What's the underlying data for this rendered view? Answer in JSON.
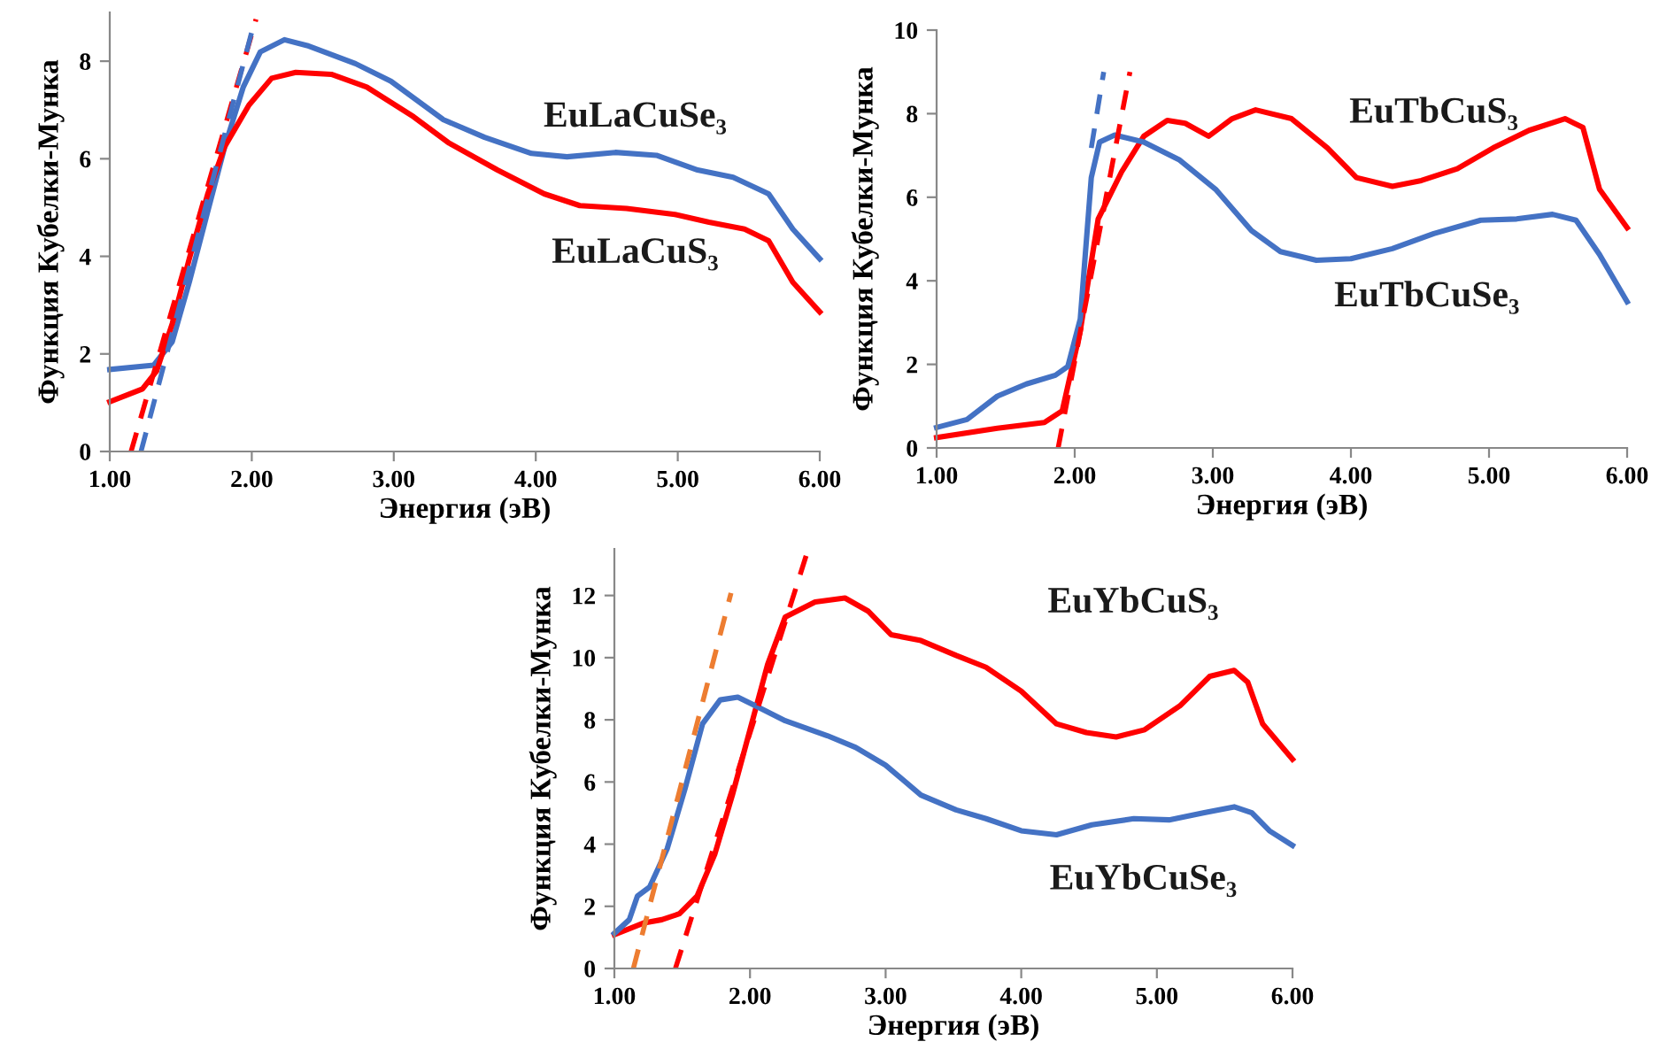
{
  "chart_data": [
    {
      "type": "line",
      "xlabel": "Энергия (эВ)",
      "ylabel": "Функция Кубелки-Мунка",
      "xlim": [
        1,
        6
      ],
      "ylim": [
        0,
        9
      ],
      "xticks": [
        {
          "value": 1,
          "label": "1.00"
        },
        {
          "value": 2,
          "label": "2.00"
        },
        {
          "value": 3,
          "label": "3.00"
        },
        {
          "value": 4,
          "label": "4.00"
        },
        {
          "value": 5,
          "label": "5.00"
        },
        {
          "value": 6,
          "label": "6.00"
        }
      ],
      "yticks": [
        0,
        2,
        4,
        6,
        8
      ],
      "grid": false,
      "legend": false,
      "series": [
        {
          "name": "EuLaCuSe₃",
          "color": "#4472c4",
          "line_style": "solid",
          "x": [
            1.0,
            1.31,
            1.44,
            1.56,
            1.69,
            1.81,
            1.94,
            2.06,
            2.23,
            2.39,
            2.73,
            2.98,
            3.35,
            3.64,
            3.97,
            4.22,
            4.56,
            4.85,
            5.14,
            5.39,
            5.64,
            5.81,
            6.0
          ],
          "values": [
            1.68,
            1.77,
            2.25,
            3.47,
            4.92,
            6.25,
            7.47,
            8.19,
            8.44,
            8.32,
            7.95,
            7.59,
            6.8,
            6.44,
            6.11,
            6.04,
            6.13,
            6.07,
            5.77,
            5.62,
            5.28,
            4.56,
            3.95
          ]
        },
        {
          "name": "EuLaCuS₃",
          "color": "#ff0000",
          "line_style": "solid",
          "x": [
            1.0,
            1.23,
            1.33,
            1.44,
            1.56,
            1.69,
            1.81,
            1.98,
            2.14,
            2.31,
            2.56,
            2.81,
            3.14,
            3.39,
            3.73,
            4.06,
            4.31,
            4.64,
            4.98,
            5.22,
            5.47,
            5.64,
            5.81,
            6.0
          ],
          "values": [
            1.02,
            1.28,
            1.65,
            2.62,
            3.95,
            5.28,
            6.25,
            7.1,
            7.65,
            7.77,
            7.73,
            7.47,
            6.86,
            6.32,
            5.77,
            5.28,
            5.04,
            4.98,
            4.86,
            4.7,
            4.56,
            4.32,
            3.47,
            2.86
          ]
        },
        {
          "color": "#ff0000",
          "line_style": "dashed",
          "x": [
            1.15,
            2.03
          ],
          "values": [
            0,
            8.86
          ]
        },
        {
          "color": "#4472c4",
          "line_style": "dashed",
          "x": [
            1.22,
            2.0
          ],
          "values": [
            0,
            8.6
          ]
        }
      ]
    },
    {
      "type": "line",
      "xlabel": "Энергия (эВ)",
      "ylabel": "Функция Кубелки-Мунка",
      "xlim": [
        1,
        6
      ],
      "ylim": [
        0,
        10
      ],
      "xticks": [
        {
          "value": 1,
          "label": "1.00"
        },
        {
          "value": 2,
          "label": "2.00"
        },
        {
          "value": 3,
          "label": "3.00"
        },
        {
          "value": 4,
          "label": "4.00"
        },
        {
          "value": 5,
          "label": "5.00"
        },
        {
          "value": 6,
          "label": "6.00"
        }
      ],
      "yticks": [
        0,
        2,
        4,
        6,
        8,
        10
      ],
      "grid": false,
      "legend": false,
      "series": [
        {
          "name": "EuTbCuS₃",
          "color": "#ff0000",
          "line_style": "solid",
          "x": [
            1.0,
            1.44,
            1.78,
            1.91,
            2.04,
            2.17,
            2.34,
            2.5,
            2.67,
            2.8,
            2.97,
            3.14,
            3.31,
            3.57,
            3.83,
            4.04,
            4.3,
            4.51,
            4.77,
            5.03,
            5.29,
            5.55,
            5.68,
            5.8,
            6.0
          ],
          "values": [
            0.25,
            0.47,
            0.61,
            0.89,
            2.8,
            5.48,
            6.61,
            7.46,
            7.84,
            7.77,
            7.46,
            7.88,
            8.09,
            7.88,
            7.18,
            6.47,
            6.26,
            6.4,
            6.68,
            7.18,
            7.6,
            7.88,
            7.67,
            6.19,
            5.27
          ]
        },
        {
          "name": "EuTbCuSe₃",
          "color": "#4472c4",
          "line_style": "solid",
          "x": [
            1.0,
            1.22,
            1.44,
            1.65,
            1.86,
            1.95,
            2.04,
            2.12,
            2.18,
            2.29,
            2.5,
            2.76,
            3.02,
            3.28,
            3.49,
            3.75,
            4.0,
            4.3,
            4.6,
            4.94,
            5.2,
            5.46,
            5.63,
            5.8,
            6.0
          ],
          "values": [
            0.49,
            0.68,
            1.24,
            1.53,
            1.74,
            1.95,
            3.08,
            6.47,
            7.32,
            7.49,
            7.32,
            6.89,
            6.19,
            5.2,
            4.7,
            4.49,
            4.53,
            4.77,
            5.13,
            5.45,
            5.48,
            5.59,
            5.45,
            4.63,
            3.5
          ]
        },
        {
          "color": "#4472c4",
          "line_style": "dashed",
          "x": [
            2.12,
            2.21
          ],
          "values": [
            7.18,
            9.0
          ]
        },
        {
          "color": "#ff0000",
          "line_style": "dashed",
          "x": [
            1.88,
            2.4
          ],
          "values": [
            0,
            9.0
          ]
        }
      ]
    },
    {
      "type": "line",
      "xlabel": "Энергия (эВ)",
      "ylabel": "Функция Кубелки-Мунка",
      "xlim": [
        1,
        6
      ],
      "ylim": [
        0,
        13.5
      ],
      "xticks": [
        {
          "value": 1,
          "label": "1.00"
        },
        {
          "value": 2,
          "label": "2.00"
        },
        {
          "value": 3,
          "label": "3.00"
        },
        {
          "value": 4,
          "label": "4.00"
        },
        {
          "value": 5,
          "label": "5.00"
        },
        {
          "value": 6,
          "label": "6.00"
        }
      ],
      "yticks": [
        0,
        2,
        4,
        6,
        8,
        10,
        12
      ],
      "grid": false,
      "legend": false,
      "series": [
        {
          "name": "EuYbCuS₃",
          "color": "#ff0000",
          "line_style": "solid",
          "x": [
            1.0,
            1.22,
            1.35,
            1.48,
            1.61,
            1.74,
            1.87,
            2.0,
            2.13,
            2.26,
            2.48,
            2.7,
            2.87,
            3.04,
            3.26,
            3.52,
            3.74,
            4.0,
            4.26,
            4.48,
            4.7,
            4.91,
            5.17,
            5.39,
            5.57,
            5.67,
            5.78,
            6.0
          ],
          "values": [
            1.09,
            1.47,
            1.57,
            1.76,
            2.33,
            3.67,
            5.58,
            7.68,
            9.78,
            11.31,
            11.79,
            11.92,
            11.5,
            10.74,
            10.55,
            10.07,
            9.69,
            8.92,
            7.87,
            7.59,
            7.45,
            7.68,
            8.45,
            9.4,
            9.59,
            9.21,
            7.87,
            6.73
          ]
        },
        {
          "name": "EuYbCuSe₃",
          "color": "#4472c4",
          "line_style": "solid",
          "x": [
            1.0,
            1.11,
            1.17,
            1.26,
            1.39,
            1.52,
            1.65,
            1.78,
            1.91,
            2.04,
            2.26,
            2.57,
            2.78,
            3.0,
            3.26,
            3.52,
            3.74,
            4.0,
            4.26,
            4.52,
            4.83,
            5.09,
            5.35,
            5.57,
            5.7,
            5.83,
            6.0
          ],
          "values": [
            1.13,
            1.57,
            2.33,
            2.62,
            3.86,
            5.77,
            7.87,
            8.64,
            8.73,
            8.45,
            7.97,
            7.49,
            7.11,
            6.54,
            5.58,
            5.1,
            4.82,
            4.43,
            4.3,
            4.62,
            4.82,
            4.78,
            5.01,
            5.2,
            5.01,
            4.43,
            3.96
          ]
        },
        {
          "color": "#ed7d31",
          "line_style": "dashed",
          "x": [
            1.14,
            1.86
          ],
          "values": [
            0,
            12.08
          ]
        },
        {
          "color": "#ff0000",
          "line_style": "dashed",
          "x": [
            1.45,
            2.43
          ],
          "values": [
            0,
            13.5
          ]
        }
      ]
    }
  ]
}
